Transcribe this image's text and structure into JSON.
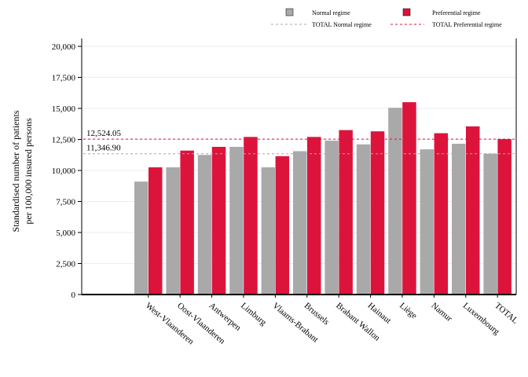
{
  "chart_data": {
    "type": "bar",
    "ylabel_lines": [
      "Standardised number of patients",
      "per 100,000 insured persons"
    ],
    "categories": [
      "West-Vlaanderen",
      "Oost-Vlaanderen",
      "Antwerpen",
      "Limburg",
      "Vlaams-Brabant",
      "Brussels",
      "Brabant Wallon",
      "Hainaut",
      "Liège",
      "Namur",
      "Luxembourg",
      "TOTAL"
    ],
    "series": [
      {
        "name": "Normal regime",
        "color": "#a9a9a9",
        "values": [
          9100,
          10250,
          11250,
          11900,
          10250,
          11550,
          12400,
          12100,
          15050,
          11700,
          12150,
          11346.9
        ]
      },
      {
        "name": "Preferential regime",
        "color": "#dc143c",
        "values": [
          10250,
          11600,
          11900,
          12700,
          11150,
          12700,
          13250,
          13150,
          15500,
          13000,
          13550,
          12524.05
        ]
      }
    ],
    "reference_lines": [
      {
        "name": "TOTAL Normal regime",
        "value": 11346.9,
        "label": "11,346.90",
        "color": "#a9a9a9"
      },
      {
        "name": "TOTAL Preferential regime",
        "value": 12524.05,
        "label": "12,524.05",
        "color": "#dc143c"
      }
    ],
    "ylim": [
      0,
      20000
    ],
    "yticks": [
      0,
      2500,
      5000,
      7500,
      10000,
      12500,
      15000,
      17500,
      20000
    ],
    "ytick_labels": [
      "0",
      "2,500",
      "5,000",
      "7,500",
      "10,000",
      "12,500",
      "15,000",
      "17,500",
      "20,000"
    ],
    "grid": true,
    "legend_position": "top-right"
  }
}
